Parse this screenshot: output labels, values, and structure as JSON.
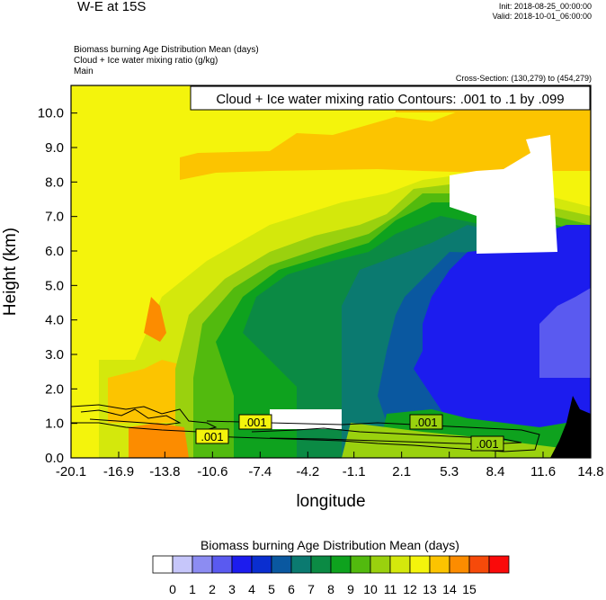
{
  "header": {
    "title": "W-E at 15S",
    "init": "Init: 2018-08-25_00:00:00",
    "valid": "Valid: 2018-10-01_06:00:00",
    "fields": [
      "Biomass burning Age Distribution Mean    (days)",
      "Cloud + Ice water mixing ratio    (g/kg)",
      "Main"
    ],
    "cross_section": "Cross-Section: (130,279) to (454,279)"
  },
  "chart_data": {
    "type": "heatmap",
    "title": "W-E at 15S",
    "contour_label": "Cloud + Ice water mixing ratio Contours: .001 to .1 by .099",
    "contour_value_labels": [
      ".001",
      ".001",
      ".001",
      ".001"
    ],
    "xlabel": "longitude",
    "ylabel": "Height (km)",
    "xlim": [
      -20.1,
      14.8
    ],
    "ylim": [
      0.0,
      10.8
    ],
    "x_ticks": [
      "-20.1",
      "-16.9",
      "-13.8",
      "-10.6",
      "-7.4",
      "-4.2",
      "-1.1",
      "2.1",
      "5.3",
      "8.4",
      "11.6",
      "14.8"
    ],
    "y_ticks": [
      "0.0",
      "1.0",
      "2.0",
      "3.0",
      "4.0",
      "5.0",
      "6.0",
      "7.0",
      "8.0",
      "9.0",
      "10.0"
    ],
    "colorbar_title": "Biomass burning Age Distribution Mean  (days)",
    "colorbar_levels": [
      "0",
      "1",
      "2",
      "3",
      "4",
      "5",
      "6",
      "7",
      "8",
      "9",
      "10",
      "11",
      "12",
      "13",
      "14",
      "15"
    ],
    "colorbar_colors": [
      "#ffffff",
      "#c6c6fa",
      "#8c8cf2",
      "#5a5af0",
      "#1c1cee",
      "#0a2ed0",
      "#0a58a0",
      "#0b7a70",
      "#0b8a44",
      "#0ea21e",
      "#52ba0e",
      "#9ad10e",
      "#d4e80c",
      "#f4f40c",
      "#fcc400",
      "#fc8c00",
      "#f64a0a",
      "#fa0a0a"
    ],
    "regions": [
      {
        "level_days": 12,
        "label": "upper / background, yellow",
        "x": [
          -20.1,
          14.8
        ],
        "y": [
          0.0,
          10.8
        ]
      },
      {
        "level_days": 13,
        "label": "upper layer, gold",
        "x": [
          -9.5,
          14.8
        ],
        "y": [
          8.2,
          9.4
        ]
      },
      {
        "level_days": 14,
        "label": "low orange near -14",
        "x": [
          -15.3,
          -11.0
        ],
        "y": [
          0.0,
          0.9
        ]
      },
      {
        "level_days": 8,
        "label": "mid plume, green",
        "x": [
          -12.0,
          8.0
        ],
        "y": [
          1.5,
          7.9
        ]
      },
      {
        "level_days": 6,
        "label": "core, teal",
        "x": [
          -4.0,
          11.6
        ],
        "y": [
          2.1,
          6.5
        ]
      },
      {
        "level_days": 4,
        "label": "east, blue",
        "x": [
          1.6,
          14.8
        ],
        "y": [
          1.1,
          6.9
        ]
      },
      {
        "level_days": 0,
        "label": "no aerosol, white",
        "x": [
          7.5,
          11.7
        ],
        "y": [
          6.0,
          8.4
        ]
      }
    ]
  }
}
